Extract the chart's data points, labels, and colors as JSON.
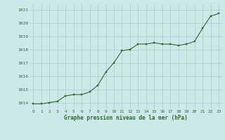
{
  "hours": [
    0,
    1,
    2,
    3,
    4,
    5,
    6,
    7,
    8,
    9,
    10,
    11,
    12,
    13,
    14,
    15,
    16,
    17,
    18,
    19,
    20,
    21,
    22,
    23
  ],
  "pressure": [
    1013.9,
    1013.9,
    1014.0,
    1014.1,
    1014.5,
    1014.6,
    1014.6,
    1014.8,
    1015.3,
    1016.3,
    1017.0,
    1017.9,
    1018.0,
    1018.4,
    1018.4,
    1018.5,
    1018.4,
    1018.4,
    1018.3,
    1018.4,
    1018.6,
    1019.6,
    1020.5,
    1020.7
  ],
  "line_color": "#2d6a2d",
  "marker_color": "#2d6a2d",
  "bg_color": "#cce8e8",
  "grid_color": "#aacccc",
  "xlabel": "Graphe pression niveau de la mer (hPa)",
  "xlabel_color": "#2d6a2d",
  "tick_color": "#2d6a2d",
  "yticks": [
    1014,
    1015,
    1016,
    1017,
    1018,
    1019,
    1020,
    1021
  ],
  "xticks": [
    0,
    1,
    2,
    3,
    4,
    5,
    6,
    7,
    8,
    9,
    10,
    11,
    12,
    13,
    14,
    15,
    16,
    17,
    18,
    19,
    20,
    21,
    22,
    23
  ],
  "ylim": [
    1013.5,
    1021.4
  ],
  "xlim": [
    -0.5,
    23.5
  ]
}
